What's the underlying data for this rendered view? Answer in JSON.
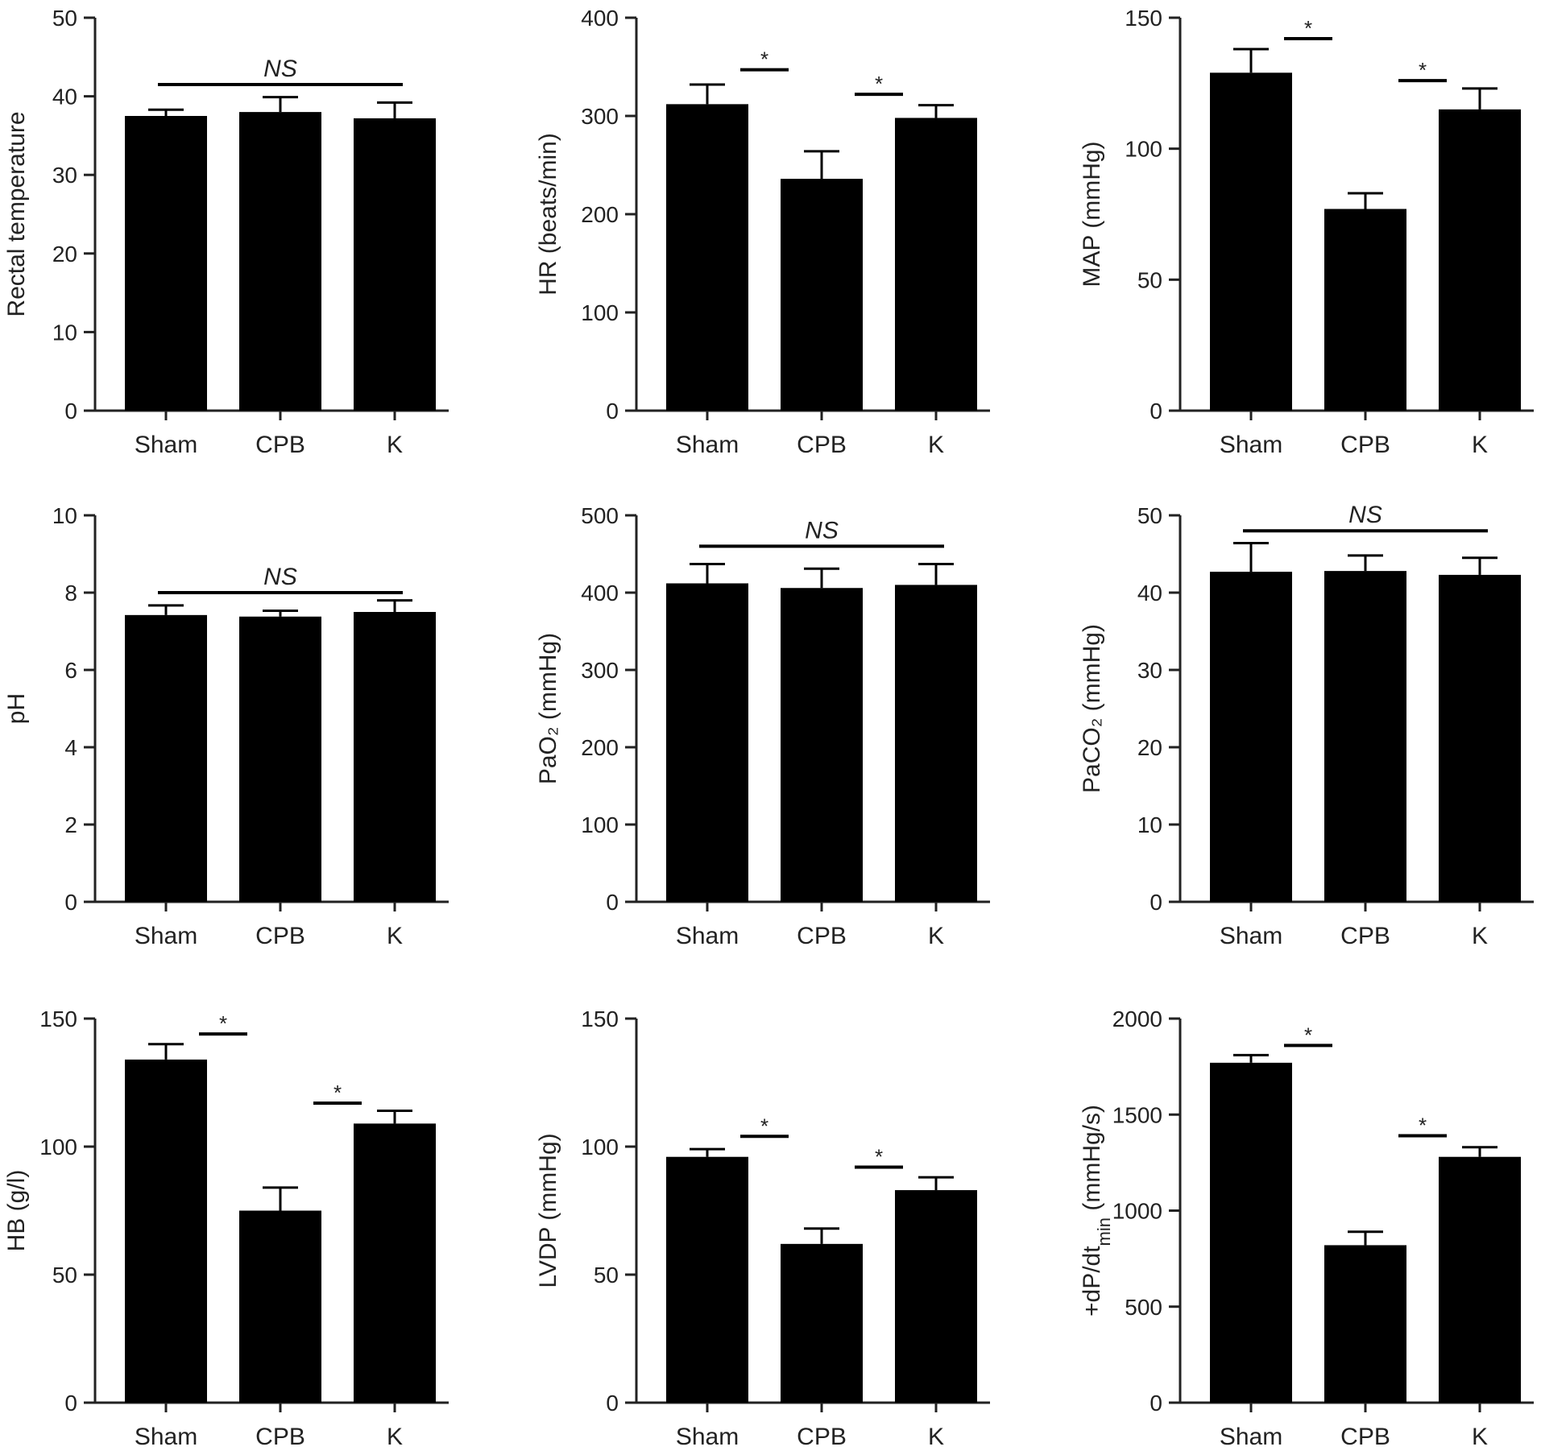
{
  "chart_data": [
    {
      "type": "bar",
      "categories": [
        "Sham",
        "CPB",
        "K"
      ],
      "values": [
        37.5,
        38.0,
        37.2
      ],
      "errors": [
        0.8,
        1.9,
        2.0
      ],
      "ylabel": "Rectal temperature",
      "ylim": [
        0,
        50
      ],
      "yticks": [
        "0",
        "10",
        "20",
        "30",
        "40",
        "50"
      ],
      "bar_color": "#000000",
      "annotations": [
        {
          "from": 0,
          "to": 2,
          "label": "NS",
          "y": 41.5,
          "italic": true
        }
      ]
    },
    {
      "type": "bar",
      "categories": [
        "Sham",
        "CPB",
        "K"
      ],
      "values": [
        312,
        236,
        298
      ],
      "errors": [
        20,
        28,
        13
      ],
      "ylabel": "HR (beats/min)",
      "ylim": [
        0,
        400
      ],
      "yticks": [
        "0",
        "100",
        "200",
        "300",
        "400"
      ],
      "bar_color": "#000000",
      "annotations": [
        {
          "from": 0,
          "to": 1,
          "label": "*",
          "y": 347,
          "italic": false
        },
        {
          "from": 1,
          "to": 2,
          "label": "*",
          "y": 322,
          "italic": false
        }
      ]
    },
    {
      "type": "bar",
      "categories": [
        "Sham",
        "CPB",
        "K"
      ],
      "values": [
        129,
        77,
        115
      ],
      "errors": [
        9,
        6,
        8
      ],
      "ylabel": "MAP (mmHg)",
      "ylim": [
        0,
        150
      ],
      "yticks": [
        "0",
        "50",
        "100",
        "150"
      ],
      "bar_color": "#000000",
      "annotations": [
        {
          "from": 0,
          "to": 1,
          "label": "*",
          "y": 142,
          "italic": false
        },
        {
          "from": 1,
          "to": 2,
          "label": "*",
          "y": 126,
          "italic": false
        }
      ]
    },
    {
      "type": "bar",
      "categories": [
        "Sham",
        "CPB",
        "K"
      ],
      "values": [
        7.42,
        7.38,
        7.5
      ],
      "errors": [
        0.25,
        0.15,
        0.3
      ],
      "ylabel": "pH",
      "ylim": [
        0,
        10
      ],
      "yticks": [
        "0",
        "2",
        "4",
        "6",
        "8",
        "10"
      ],
      "bar_color": "#000000",
      "annotations": [
        {
          "from": 0,
          "to": 2,
          "label": "NS",
          "y": 8.0,
          "italic": true
        }
      ]
    },
    {
      "type": "bar",
      "categories": [
        "Sham",
        "CPB",
        "K"
      ],
      "values": [
        412,
        406,
        410
      ],
      "errors": [
        25,
        25,
        27
      ],
      "ylabel": "PaO₂ (mmHg)",
      "ylim": [
        0,
        500
      ],
      "yticks": [
        "0",
        "100",
        "200",
        "300",
        "400",
        "500"
      ],
      "bar_color": "#000000",
      "annotations": [
        {
          "from": 0,
          "to": 2,
          "label": "NS",
          "y": 460,
          "italic": true
        }
      ]
    },
    {
      "type": "bar",
      "categories": [
        "Sham",
        "CPB",
        "K"
      ],
      "values": [
        42.7,
        42.8,
        42.3
      ],
      "errors": [
        3.7,
        2.0,
        2.2
      ],
      "ylabel": "PaCO₂ (mmHg)",
      "ylim": [
        0,
        50
      ],
      "yticks": [
        "0",
        "10",
        "20",
        "30",
        "40",
        "50"
      ],
      "bar_color": "#000000",
      "annotations": [
        {
          "from": 0,
          "to": 2,
          "label": "NS",
          "y": 48.0,
          "italic": true
        }
      ]
    },
    {
      "type": "bar",
      "categories": [
        "Sham",
        "CPB",
        "K"
      ],
      "values": [
        134,
        75,
        109
      ],
      "errors": [
        6,
        9,
        5
      ],
      "ylabel": "HB (g/l)",
      "ylim": [
        0,
        150
      ],
      "yticks": [
        "0",
        "50",
        "100",
        "150"
      ],
      "bar_color": "#000000",
      "annotations": [
        {
          "from": 0,
          "to": 1,
          "label": "*",
          "y": 144,
          "italic": false
        },
        {
          "from": 1,
          "to": 2,
          "label": "*",
          "y": 117,
          "italic": false
        }
      ]
    },
    {
      "type": "bar",
      "categories": [
        "Sham",
        "CPB",
        "K"
      ],
      "values": [
        96,
        62,
        83
      ],
      "errors": [
        3,
        6,
        5
      ],
      "ylabel": "LVDP (mmHg)",
      "ylim": [
        0,
        150
      ],
      "yticks": [
        "0",
        "50",
        "100",
        "150"
      ],
      "bar_color": "#000000",
      "annotations": [
        {
          "from": 0,
          "to": 1,
          "label": "*",
          "y": 104,
          "italic": false
        },
        {
          "from": 1,
          "to": 2,
          "label": "*",
          "y": 92,
          "italic": false
        }
      ]
    },
    {
      "type": "bar",
      "categories": [
        "Sham",
        "CPB",
        "K"
      ],
      "values": [
        1770,
        820,
        1280
      ],
      "errors": [
        40,
        70,
        50
      ],
      "ylabel": "+dP/dt_min (mmHg/s)",
      "ylabel_parts": [
        "+dP/dt",
        "min",
        " (mmHg/s)"
      ],
      "ylim": [
        0,
        2000
      ],
      "yticks": [
        "0",
        "500",
        "1000",
        "1500",
        "2000"
      ],
      "bar_color": "#000000",
      "annotations": [
        {
          "from": 0,
          "to": 1,
          "label": "*",
          "y": 1860,
          "italic": false
        },
        {
          "from": 1,
          "to": 2,
          "label": "*",
          "y": 1390,
          "italic": false
        }
      ]
    }
  ]
}
